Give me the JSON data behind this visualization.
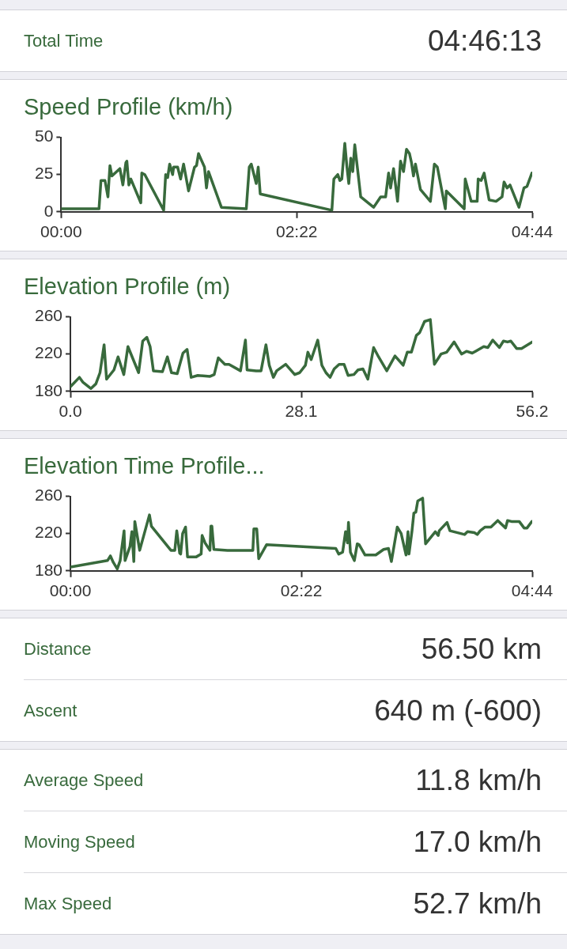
{
  "chart_data": [
    {
      "type": "other",
      "annotations": [
        "Total Time",
        "04:46:13"
      ]
    },
    {
      "type": "line",
      "title": "Speed Profile (km/h)",
      "color": "#386a3c",
      "marker": "none",
      "line_style": "solid",
      "grid": false,
      "legend": false,
      "xlim": [
        0,
        4.733
      ],
      "xticks": [
        {
          "value": 0,
          "label": "00:00"
        },
        {
          "value": 2.367,
          "label": "02:22"
        },
        {
          "value": 4.733,
          "label": "04:44"
        }
      ],
      "ylim": [
        0,
        50
      ],
      "yticks": [
        0,
        25,
        50
      ],
      "x": [
        0,
        0.38,
        0.4,
        0.44,
        0.47,
        0.49,
        0.51,
        0.59,
        0.62,
        0.65,
        0.66,
        0.68,
        0.7,
        0.8,
        0.81,
        0.84,
        1.03,
        1.05,
        1.07,
        1.09,
        1.12,
        1.13,
        1.17,
        1.2,
        1.23,
        1.28,
        1.34,
        1.36,
        1.38,
        1.44,
        1.46,
        1.48,
        1.61,
        1.86,
        1.89,
        1.91,
        1.96,
        1.98,
        2.0,
        2.72,
        2.74,
        2.78,
        2.8,
        2.82,
        2.85,
        2.87,
        2.89,
        2.91,
        2.93,
        2.95,
        3.01,
        3.14,
        3.21,
        3.26,
        3.29,
        3.31,
        3.34,
        3.38,
        3.41,
        3.44,
        3.47,
        3.5,
        3.52,
        3.54,
        3.56,
        3.61,
        3.71,
        3.75,
        3.78,
        3.86,
        3.87,
        4.05,
        4.06,
        4.12,
        4.18,
        4.19,
        4.22,
        4.25,
        4.3,
        4.37,
        4.43,
        4.45,
        4.48,
        4.51,
        4.6,
        4.65,
        4.68,
        4.73
      ],
      "values": [
        2,
        2,
        21,
        21,
        10,
        31,
        24,
        29,
        18,
        33,
        34,
        18,
        22,
        6,
        26,
        25,
        1,
        25,
        23,
        32,
        25,
        30,
        30,
        22,
        32,
        14,
        30,
        31,
        39,
        30,
        16,
        27,
        3,
        2,
        30,
        32,
        19,
        30,
        12,
        1,
        22,
        25,
        21,
        22,
        46,
        31,
        19,
        36,
        27,
        45,
        10,
        3,
        10,
        10,
        26,
        16,
        29,
        7,
        34,
        27,
        42,
        39,
        33,
        24,
        32,
        15,
        7,
        32,
        30,
        2,
        14,
        2,
        22,
        7,
        7,
        22,
        21,
        26,
        8,
        7,
        10,
        20,
        16,
        18,
        3,
        16,
        17,
        26
      ]
    },
    {
      "type": "line",
      "title": "Elevation Profile (m)",
      "color": "#386a3c",
      "marker": "none",
      "line_style": "solid",
      "grid": false,
      "legend": false,
      "xlim": [
        0,
        56.2
      ],
      "xticks": [
        {
          "value": 0,
          "label": "0.0"
        },
        28.1,
        56.2
      ],
      "ylim": [
        180,
        260
      ],
      "yticks": [
        180,
        220,
        260
      ],
      "x": [
        0,
        1.1,
        1.5,
        2.5,
        3.1,
        3.6,
        4.1,
        4.4,
        5.3,
        5.8,
        6.5,
        7.0,
        8.3,
        8.8,
        9.3,
        9.7,
        10.1,
        11.2,
        11.8,
        12.3,
        13.0,
        13.7,
        14.2,
        14.7,
        15.5,
        17.0,
        17.5,
        18.0,
        18.8,
        19.3,
        20.7,
        21.3,
        21.5,
        22.6,
        23.2,
        23.8,
        24.2,
        24.7,
        25.1,
        26.2,
        27.3,
        27.9,
        28.6,
        28.9,
        29.3,
        30.1,
        30.6,
        31.1,
        31.6,
        32.1,
        32.7,
        33.3,
        33.8,
        34.5,
        35.0,
        35.6,
        36.2,
        36.9,
        37.5,
        38.5,
        39.5,
        40.5,
        41.0,
        41.5,
        42.1,
        42.5,
        43.1,
        43.8,
        44.3,
        45.1,
        45.8,
        46.7,
        47.6,
        48.2,
        48.9,
        49.3,
        50.3,
        50.8,
        51.4,
        52.2,
        52.7,
        53.2,
        53.6,
        54.3,
        54.9,
        56.2
      ],
      "values": [
        185,
        195,
        190,
        183,
        188,
        200,
        230,
        193,
        203,
        217,
        198,
        228,
        200,
        234,
        238,
        228,
        202,
        201,
        217,
        200,
        199,
        221,
        225,
        195,
        197,
        196,
        198,
        216,
        209,
        209,
        202,
        235,
        203,
        202,
        202,
        230,
        208,
        195,
        202,
        209,
        198,
        200,
        208,
        222,
        214,
        235,
        208,
        200,
        195,
        204,
        209,
        209,
        197,
        198,
        203,
        204,
        193,
        227,
        217,
        202,
        218,
        208,
        222,
        222,
        240,
        243,
        255,
        257,
        209,
        220,
        222,
        233,
        220,
        223,
        221,
        223,
        228,
        227,
        235,
        227,
        234,
        233,
        234,
        226,
        226,
        233
      ]
    },
    {
      "type": "line",
      "title": "Elevation Time Profile...",
      "color": "#386a3c",
      "marker": "none",
      "line_style": "solid",
      "grid": false,
      "legend": false,
      "xlim": [
        0,
        4.733
      ],
      "xticks": [
        {
          "value": 0,
          "label": "00:00"
        },
        {
          "value": 2.367,
          "label": "02:22"
        },
        {
          "value": 4.733,
          "label": "04:44"
        }
      ],
      "ylim": [
        180,
        260
      ],
      "yticks": [
        180,
        220,
        260
      ],
      "x": [
        0,
        0.38,
        0.41,
        0.44,
        0.48,
        0.51,
        0.55,
        0.56,
        0.61,
        0.63,
        0.65,
        0.66,
        0.71,
        0.81,
        0.83,
        1.03,
        1.07,
        1.09,
        1.12,
        1.13,
        1.15,
        1.18,
        1.2,
        1.29,
        1.34,
        1.35,
        1.38,
        1.43,
        1.44,
        1.45,
        1.47,
        1.61,
        1.87,
        1.88,
        1.91,
        1.93,
        2.01,
        2.72,
        2.75,
        2.79,
        2.82,
        2.84,
        2.85,
        2.87,
        2.91,
        2.94,
        2.96,
        3.02,
        3.13,
        3.21,
        3.26,
        3.29,
        3.35,
        3.39,
        3.44,
        3.46,
        3.47,
        3.5,
        3.52,
        3.54,
        3.56,
        3.61,
        3.64,
        3.74,
        3.77,
        3.78,
        3.86,
        3.89,
        4.04,
        4.07,
        4.14,
        4.17,
        4.2,
        4.25,
        4.31,
        4.38,
        4.46,
        4.48,
        4.52,
        4.6,
        4.65,
        4.68,
        4.73
      ],
      "values": [
        184,
        191,
        196,
        189,
        182,
        191,
        223,
        191,
        206,
        222,
        190,
        233,
        202,
        240,
        228,
        202,
        202,
        223,
        199,
        198,
        220,
        227,
        195,
        195,
        198,
        218,
        210,
        202,
        228,
        228,
        203,
        202,
        202,
        225,
        225,
        193,
        208,
        204,
        198,
        200,
        222,
        210,
        232,
        200,
        191,
        209,
        208,
        197,
        197,
        203,
        204,
        190,
        227,
        220,
        197,
        222,
        198,
        222,
        242,
        243,
        255,
        258,
        209,
        222,
        218,
        223,
        232,
        223,
        219,
        222,
        221,
        219,
        223,
        227,
        227,
        234,
        226,
        234,
        233,
        233,
        226,
        226,
        233
      ]
    },
    {
      "type": "other",
      "annotations": [
        "Distance",
        "56.50 km",
        "Ascent",
        "640 m (-600)"
      ]
    },
    {
      "type": "other",
      "annotations": [
        "Average Speed",
        "11.8 km/h",
        "Moving Speed",
        "17.0 km/h",
        "Max Speed",
        "52.7 km/h"
      ]
    }
  ]
}
